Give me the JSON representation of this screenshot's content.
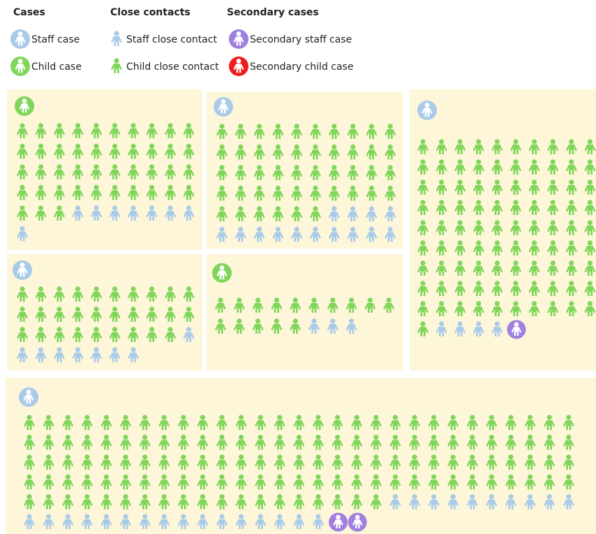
{
  "legend": [
    {
      "heading": "Cases",
      "items": [
        "Staff case",
        "Child case"
      ]
    },
    {
      "heading": "Close contacts",
      "items": [
        "Staff close contact",
        "Child close contact"
      ]
    },
    {
      "heading": "Secondary cases",
      "items": [
        "Secondary staff case",
        "Secondary child case"
      ]
    }
  ],
  "clusters": [
    {
      "staff_cases": 0,
      "child_cases": 1,
      "child_close_contacts": 43,
      "staff_close_contacts": 8,
      "secondary_staff_cases": 0,
      "secondary_child_cases": 0
    },
    {
      "staff_cases": 1,
      "child_cases": 0,
      "child_close_contacts": 46,
      "staff_close_contacts": 14,
      "secondary_staff_cases": 0,
      "secondary_child_cases": 0
    },
    {
      "staff_cases": 1,
      "child_cases": 0,
      "child_close_contacts": 29,
      "staff_close_contacts": 8,
      "secondary_staff_cases": 0,
      "secondary_child_cases": 0
    },
    {
      "staff_cases": 0,
      "child_cases": 1,
      "child_close_contacts": 15,
      "staff_close_contacts": 3,
      "secondary_staff_cases": 0,
      "secondary_child_cases": 0
    },
    {
      "staff_cases": 1,
      "child_cases": 0,
      "child_close_contacts": 91,
      "staff_close_contacts": 4,
      "secondary_staff_cases": 1,
      "secondary_child_cases": 0
    },
    {
      "staff_cases": 1,
      "child_cases": 0,
      "child_close_contacts": 135,
      "staff_close_contacts": 26,
      "secondary_staff_cases": 2,
      "secondary_child_cases": 0
    }
  ]
}
